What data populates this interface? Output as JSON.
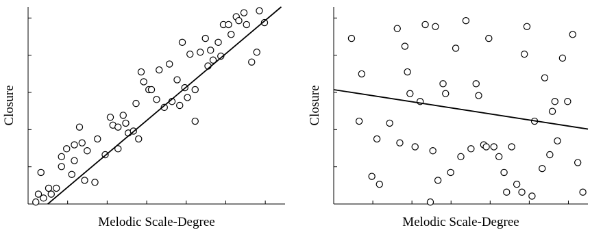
{
  "chart_data": [
    {
      "type": "scatter",
      "title": "",
      "xlabel": "Melodic Scale-Degree",
      "ylabel": "Closure",
      "xlim": [
        0,
        10
      ],
      "ylim": [
        0,
        10
      ],
      "grid": false,
      "tick_labels_shown": false,
      "fit_line": {
        "slope": 1.1,
        "intercept": -0.84
      },
      "x": [
        0.3,
        0.4,
        0.5,
        0.6,
        0.8,
        0.9,
        1.1,
        1.3,
        1.3,
        1.5,
        1.7,
        1.8,
        1.8,
        2.0,
        2.1,
        2.2,
        2.3,
        2.6,
        2.7,
        3.0,
        3.2,
        3.3,
        3.5,
        3.5,
        3.7,
        3.8,
        3.9,
        4.1,
        4.2,
        4.3,
        4.4,
        4.5,
        4.7,
        4.8,
        5.0,
        5.1,
        5.3,
        5.5,
        5.6,
        5.8,
        5.9,
        6.0,
        6.1,
        6.2,
        6.3,
        6.5,
        6.5,
        6.7,
        6.9,
        7.0,
        7.1,
        7.2,
        7.4,
        7.5,
        7.6,
        7.8,
        7.9,
        8.1,
        8.2,
        8.4,
        8.5,
        8.7,
        8.9,
        9.0,
        9.2
      ],
      "y": [
        0.1,
        0.5,
        1.6,
        0.3,
        0.8,
        0.5,
        0.8,
        1.9,
        2.4,
        2.8,
        1.5,
        2.2,
        3.0,
        3.9,
        3.1,
        1.2,
        2.7,
        1.1,
        3.3,
        2.5,
        4.4,
        4.0,
        3.9,
        2.8,
        4.5,
        4.1,
        3.6,
        3.7,
        5.1,
        3.3,
        6.7,
        6.2,
        5.8,
        5.8,
        5.3,
        6.8,
        4.9,
        7.1,
        5.2,
        6.3,
        5.0,
        8.2,
        5.9,
        5.4,
        7.6,
        4.2,
        5.8,
        7.7,
        8.4,
        7.0,
        7.8,
        7.3,
        8.2,
        7.5,
        9.1,
        9.1,
        8.6,
        9.5,
        9.3,
        9.7,
        9.1,
        7.2,
        7.7,
        9.8,
        9.2
      ]
    },
    {
      "type": "scatter",
      "title": "",
      "xlabel": "Melodic Scale-Degree",
      "ylabel": "Closure",
      "xlim": [
        0,
        10
      ],
      "ylim": [
        0,
        10
      ],
      "grid": false,
      "tick_labels_shown": false,
      "fit_line": {
        "slope": -0.2,
        "intercept": 5.8
      },
      "x": [
        0.7,
        1.0,
        1.1,
        1.5,
        1.7,
        1.8,
        2.2,
        2.5,
        2.6,
        2.8,
        2.9,
        3.0,
        3.2,
        3.4,
        3.6,
        3.8,
        3.9,
        4.0,
        4.1,
        4.3,
        4.4,
        4.6,
        4.8,
        5.0,
        5.2,
        5.4,
        5.6,
        5.7,
        5.9,
        6.0,
        6.1,
        6.3,
        6.5,
        6.7,
        6.8,
        7.0,
        7.2,
        7.4,
        7.5,
        7.6,
        7.8,
        7.9,
        8.2,
        8.3,
        8.5,
        8.6,
        8.7,
        8.8,
        9.0,
        9.2,
        9.4,
        9.6,
        9.8
      ],
      "y": [
        8.4,
        4.2,
        6.6,
        1.4,
        3.3,
        1.0,
        4.1,
        8.9,
        3.1,
        8.0,
        6.7,
        5.6,
        2.9,
        5.2,
        9.1,
        0.1,
        2.7,
        9.0,
        1.2,
        6.1,
        5.6,
        1.6,
        7.9,
        2.4,
        9.3,
        2.8,
        6.1,
        5.5,
        3.0,
        2.9,
        8.4,
        2.9,
        2.4,
        1.6,
        0.6,
        2.9,
        1.0,
        0.6,
        7.6,
        9.0,
        0.4,
        4.2,
        1.8,
        6.4,
        2.5,
        4.7,
        5.2,
        3.2,
        7.4,
        5.2,
        8.6,
        2.1,
        0.6
      ]
    }
  ]
}
